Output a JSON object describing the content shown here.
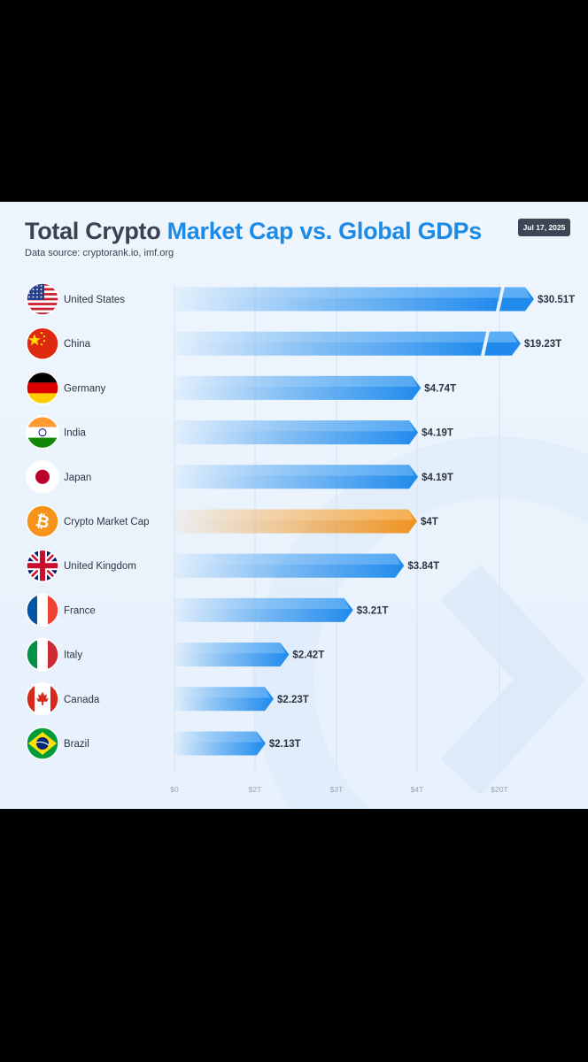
{
  "header": {
    "title_part1": "Total Crypto ",
    "title_part2": "Market Cap vs. Global GDPs",
    "subtitle": "Data source: cryptorank.io, imf.org",
    "date": "Jul 17, 2025"
  },
  "colors": {
    "bar_blue": "#2d93ee",
    "bar_orange": "#f2992b",
    "title_accent": "#1d8be6"
  },
  "chart_data": {
    "type": "bar",
    "orientation": "horizontal",
    "title": "Total Crypto Market Cap vs. Global GDPs",
    "categories": [
      "United States",
      "China",
      "Germany",
      "India",
      "Japan",
      "Crypto Market Cap",
      "United Kingdom",
      "France",
      "Italy",
      "Canada",
      "Brazil"
    ],
    "values": [
      30.51,
      19.23,
      4.74,
      4.19,
      4.19,
      4.0,
      3.84,
      3.21,
      2.42,
      2.23,
      2.13
    ],
    "value_labels": [
      "$30.51T",
      "$19.23T",
      "$4.74T",
      "$4.19T",
      "$4.19T",
      "$4T",
      "$3.84T",
      "$3.21T",
      "$2.42T",
      "$2.23T",
      "$2.13T"
    ],
    "flag_icons": [
      "us-flag-icon",
      "china-flag-icon",
      "germany-flag-icon",
      "india-flag-icon",
      "japan-flag-icon",
      "bitcoin-icon",
      "uk-flag-icon",
      "france-flag-icon",
      "italy-flag-icon",
      "canada-flag-icon",
      "brazil-flag-icon"
    ],
    "highlight": [
      "Crypto Market Cap"
    ],
    "broken_bars": [
      "United States",
      "China"
    ],
    "x_tick_labels": [
      "$0",
      "$2T",
      "$3T",
      "$4T",
      "$20T"
    ],
    "grid": true,
    "unit": "trillions USD"
  }
}
